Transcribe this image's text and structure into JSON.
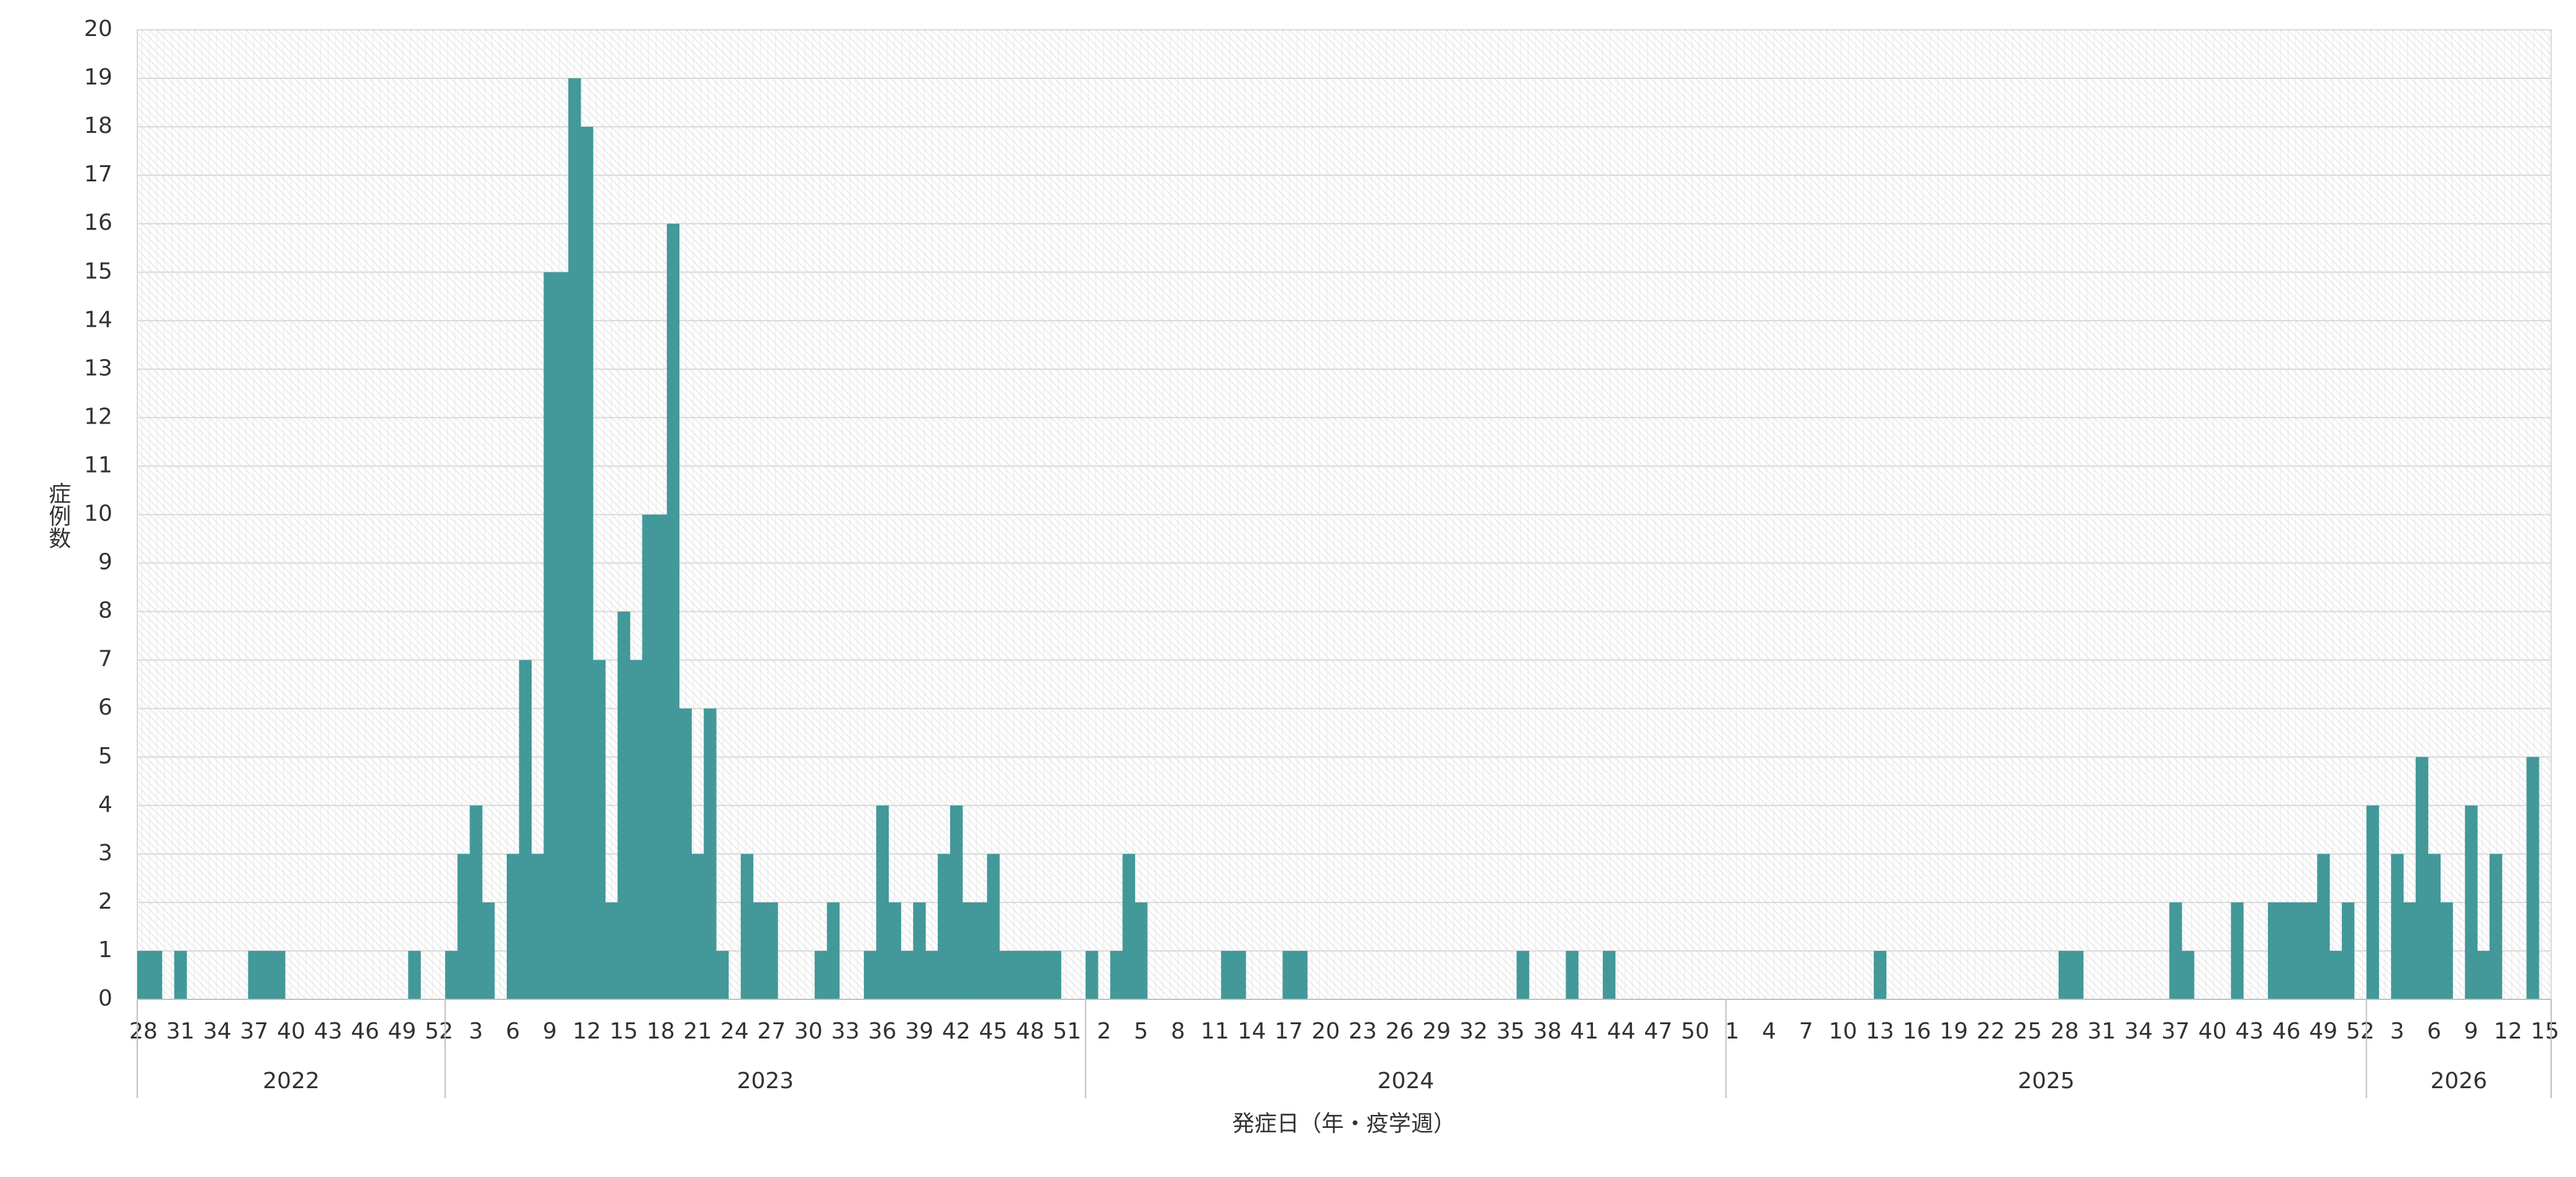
{
  "chart_data": {
    "type": "bar",
    "y_label": "症例数",
    "x_label": "発症日（年・疫学週）",
    "color": "#43989a",
    "grid": true,
    "ylim": [
      0,
      20
    ],
    "yticks": [
      0,
      1,
      2,
      3,
      4,
      5,
      6,
      7,
      8,
      9,
      10,
      11,
      12,
      13,
      14,
      15,
      16,
      17,
      18,
      19,
      20
    ],
    "year_groups": [
      {
        "label": "2022",
        "span": 25
      },
      {
        "label": "2023",
        "span": 52
      },
      {
        "label": "2024",
        "span": 52
      },
      {
        "label": "2025",
        "span": 52
      },
      {
        "label": "2026",
        "span": 15
      }
    ],
    "categories": [
      "28",
      null,
      null,
      "31",
      null,
      null,
      "34",
      null,
      null,
      "37",
      null,
      null,
      "40",
      null,
      null,
      "43",
      null,
      null,
      "46",
      null,
      null,
      "49",
      null,
      null,
      "52",
      null,
      null,
      "3",
      null,
      null,
      "6",
      null,
      null,
      "9",
      null,
      null,
      "12",
      null,
      null,
      "15",
      null,
      null,
      "18",
      null,
      null,
      "21",
      null,
      null,
      "24",
      null,
      null,
      "27",
      null,
      null,
      "30",
      null,
      null,
      "33",
      null,
      null,
      "36",
      null,
      null,
      "39",
      null,
      null,
      "42",
      null,
      null,
      "45",
      null,
      null,
      "48",
      null,
      null,
      "51",
      null,
      null,
      "2",
      null,
      null,
      "5",
      null,
      null,
      "8",
      null,
      null,
      "11",
      null,
      null,
      "14",
      null,
      null,
      "17",
      null,
      null,
      "20",
      null,
      null,
      "23",
      null,
      null,
      "26",
      null,
      null,
      "29",
      null,
      null,
      "32",
      null,
      null,
      "35",
      null,
      null,
      "38",
      null,
      null,
      "41",
      null,
      null,
      "44",
      null,
      null,
      "47",
      null,
      null,
      "50",
      null,
      null,
      "1",
      null,
      null,
      "4",
      null,
      null,
      "7",
      null,
      null,
      "10",
      null,
      null,
      "13",
      null,
      null,
      "16",
      null,
      null,
      "19",
      null,
      null,
      "22",
      null,
      null,
      "25",
      null,
      null,
      "28",
      null,
      null,
      "31",
      null,
      null,
      "34",
      null,
      null,
      "37",
      null,
      null,
      "40",
      null,
      null,
      "43",
      null,
      null,
      "46",
      null,
      null,
      "49",
      null,
      null,
      "52",
      null,
      null,
      "3",
      null,
      null,
      "6",
      null,
      null,
      "9",
      null,
      null,
      "12",
      null,
      null,
      "15"
    ],
    "values": [
      1,
      1,
      0,
      1,
      0,
      0,
      0,
      0,
      0,
      1,
      1,
      1,
      0,
      0,
      0,
      0,
      0,
      0,
      0,
      0,
      0,
      0,
      1,
      0,
      0,
      1,
      3,
      4,
      2,
      0,
      3,
      7,
      3,
      15,
      15,
      19,
      18,
      7,
      2,
      8,
      7,
      10,
      10,
      16,
      6,
      3,
      6,
      1,
      0,
      3,
      2,
      2,
      0,
      0,
      0,
      1,
      2,
      0,
      0,
      1,
      4,
      2,
      1,
      2,
      1,
      3,
      4,
      2,
      2,
      3,
      1,
      1,
      1,
      1,
      1,
      0,
      0,
      1,
      0,
      1,
      3,
      2,
      0,
      0,
      0,
      0,
      0,
      0,
      1,
      1,
      0,
      0,
      0,
      1,
      1,
      0,
      0,
      0,
      0,
      0,
      0,
      0,
      0,
      0,
      0,
      0,
      0,
      0,
      0,
      0,
      0,
      0,
      1,
      0,
      0,
      0,
      1,
      0,
      0,
      1,
      0,
      0,
      0,
      0,
      0,
      0,
      0,
      0,
      0,
      0,
      0,
      0,
      0,
      0,
      0,
      0,
      0,
      0,
      0,
      0,
      0,
      1,
      0,
      0,
      0,
      0,
      0,
      0,
      0,
      0,
      0,
      0,
      0,
      0,
      0,
      0,
      1,
      1,
      0,
      0,
      0,
      0,
      0,
      0,
      0,
      2,
      1,
      0,
      0,
      0,
      2,
      0,
      0,
      2,
      2,
      2,
      2,
      3,
      1,
      2,
      0,
      4,
      0,
      3,
      2,
      5,
      3,
      2,
      0,
      4,
      1,
      3,
      0,
      0,
      5,
      0
    ]
  }
}
